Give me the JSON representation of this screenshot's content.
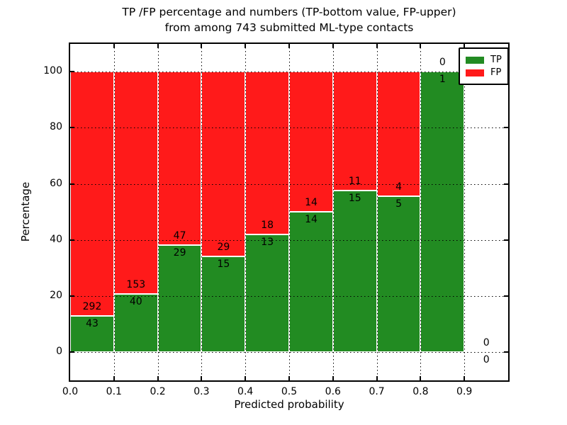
{
  "figure": {
    "title_line1": "TP /FP percentage and numbers (TP-bottom value, FP-upper)",
    "title_line2": "from among 743 submitted ML-type contacts",
    "xlabel": "Predicted probability",
    "ylabel": "Percentage"
  },
  "legend": {
    "items": [
      {
        "label": "TP",
        "color": "#228b22"
      },
      {
        "label": "FP",
        "color": "#ff1a1a"
      }
    ]
  },
  "chart_data": {
    "type": "bar",
    "stacked": true,
    "normalized_to_percent": true,
    "title": "TP /FP percentage and numbers (TP-bottom value, FP-upper) from among 743 submitted ML-type contacts",
    "xlabel": "Predicted probability",
    "ylabel": "Percentage",
    "total_contacts": 743,
    "xlim": [
      0.0,
      1.0
    ],
    "ylim": [
      -10,
      110
    ],
    "grid": "dotted",
    "legend_position": "upper right",
    "bin_width": 0.1,
    "x_tick_labels": [
      "0.0",
      "0.1",
      "0.2",
      "0.3",
      "0.4",
      "0.5",
      "0.6",
      "0.7",
      "0.8",
      "0.9"
    ],
    "y_tick_labels": [
      "0",
      "20",
      "40",
      "60",
      "80",
      "100"
    ],
    "y_tick_values": [
      0,
      20,
      40,
      60,
      80,
      100
    ],
    "colors": {
      "tp": "#228b22",
      "fp": "#ff1a1a"
    },
    "bins": [
      {
        "x_start": 0.0,
        "tp": 43,
        "fp": 292,
        "tp_pct": 12.8
      },
      {
        "x_start": 0.1,
        "tp": 40,
        "fp": 153,
        "tp_pct": 20.7
      },
      {
        "x_start": 0.2,
        "tp": 29,
        "fp": 47,
        "tp_pct": 38.2
      },
      {
        "x_start": 0.3,
        "tp": 15,
        "fp": 29,
        "tp_pct": 34.1
      },
      {
        "x_start": 0.4,
        "tp": 13,
        "fp": 18,
        "tp_pct": 41.9
      },
      {
        "x_start": 0.5,
        "tp": 14,
        "fp": 14,
        "tp_pct": 50.0
      },
      {
        "x_start": 0.6,
        "tp": 15,
        "fp": 11,
        "tp_pct": 57.7
      },
      {
        "x_start": 0.7,
        "tp": 5,
        "fp": 4,
        "tp_pct": 55.6
      },
      {
        "x_start": 0.8,
        "tp": 1,
        "fp": 0,
        "tp_pct": 100.0
      },
      {
        "x_start": 0.9,
        "tp": 0,
        "fp": 0,
        "tp_pct": 0.0
      }
    ],
    "series": [
      {
        "name": "TP",
        "color": "#228b22",
        "counts": [
          43,
          40,
          29,
          15,
          13,
          14,
          15,
          5,
          1,
          0
        ]
      },
      {
        "name": "FP",
        "color": "#ff1a1a",
        "counts": [
          292,
          153,
          47,
          29,
          18,
          14,
          11,
          4,
          0,
          0
        ]
      }
    ]
  }
}
